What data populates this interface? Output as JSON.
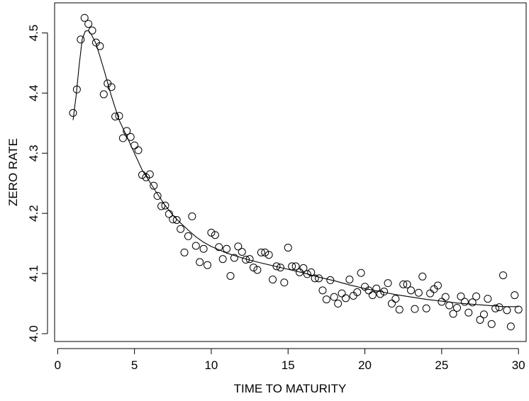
{
  "chart_data": {
    "type": "scatter",
    "title": "",
    "xlabel": "TIME TO MATURITY",
    "ylabel": "ZERO RATE",
    "xlim": [
      -0.2,
      30.5
    ],
    "ylim": [
      3.987,
      4.55
    ],
    "xticks": [
      0,
      5,
      10,
      15,
      20,
      25,
      30
    ],
    "xtick_labels": [
      "0",
      "5",
      "10",
      "15",
      "20",
      "25",
      "30"
    ],
    "yticks": [
      4.0,
      4.1,
      4.2,
      4.3,
      4.4,
      4.5
    ],
    "ytick_labels": [
      "4.0",
      "4.1",
      "4.2",
      "4.3",
      "4.4",
      "4.5"
    ],
    "grid": false,
    "legend": "none",
    "points": [
      [
        1.0,
        4.367
      ],
      [
        1.25,
        4.406
      ],
      [
        1.5,
        4.489
      ],
      [
        1.75,
        4.525
      ],
      [
        2.0,
        4.515
      ],
      [
        2.25,
        4.504
      ],
      [
        2.5,
        4.484
      ],
      [
        2.75,
        4.478
      ],
      [
        3.0,
        4.398
      ],
      [
        3.25,
        4.416
      ],
      [
        3.5,
        4.41
      ],
      [
        3.75,
        4.361
      ],
      [
        4.0,
        4.362
      ],
      [
        4.25,
        4.325
      ],
      [
        4.5,
        4.337
      ],
      [
        4.75,
        4.327
      ],
      [
        5.0,
        4.313
      ],
      [
        5.25,
        4.305
      ],
      [
        5.5,
        4.264
      ],
      [
        5.75,
        4.26
      ],
      [
        6.0,
        4.265
      ],
      [
        6.25,
        4.246
      ],
      [
        6.5,
        4.229
      ],
      [
        6.75,
        4.212
      ],
      [
        7.0,
        4.213
      ],
      [
        7.25,
        4.199
      ],
      [
        7.5,
        4.19
      ],
      [
        7.75,
        4.189
      ],
      [
        8.0,
        4.174
      ],
      [
        8.25,
        4.135
      ],
      [
        8.5,
        4.162
      ],
      [
        8.75,
        4.195
      ],
      [
        9.0,
        4.146
      ],
      [
        9.25,
        4.119
      ],
      [
        9.5,
        4.141
      ],
      [
        9.75,
        4.114
      ],
      [
        10.0,
        4.168
      ],
      [
        10.25,
        4.164
      ],
      [
        10.5,
        4.144
      ],
      [
        10.75,
        4.124
      ],
      [
        11.0,
        4.141
      ],
      [
        11.25,
        4.096
      ],
      [
        11.5,
        4.126
      ],
      [
        11.75,
        4.145
      ],
      [
        12.0,
        4.136
      ],
      [
        12.25,
        4.123
      ],
      [
        12.5,
        4.124
      ],
      [
        12.75,
        4.11
      ],
      [
        13.0,
        4.106
      ],
      [
        13.25,
        4.135
      ],
      [
        13.5,
        4.135
      ],
      [
        13.75,
        4.131
      ],
      [
        14.0,
        4.09
      ],
      [
        14.25,
        4.112
      ],
      [
        14.5,
        4.11
      ],
      [
        14.75,
        4.085
      ],
      [
        15.0,
        4.143
      ],
      [
        15.25,
        4.112
      ],
      [
        15.5,
        4.112
      ],
      [
        15.75,
        4.102
      ],
      [
        16.0,
        4.109
      ],
      [
        16.25,
        4.099
      ],
      [
        16.5,
        4.102
      ],
      [
        16.75,
        4.092
      ],
      [
        17.0,
        4.092
      ],
      [
        17.25,
        4.072
      ],
      [
        17.5,
        4.057
      ],
      [
        17.75,
        4.089
      ],
      [
        18.0,
        4.061
      ],
      [
        18.25,
        4.05
      ],
      [
        18.5,
        4.067
      ],
      [
        18.75,
        4.059
      ],
      [
        19.0,
        4.09
      ],
      [
        19.25,
        4.063
      ],
      [
        19.5,
        4.069
      ],
      [
        19.75,
        4.101
      ],
      [
        20.0,
        4.078
      ],
      [
        20.25,
        4.072
      ],
      [
        20.5,
        4.064
      ],
      [
        20.75,
        4.075
      ],
      [
        21.0,
        4.066
      ],
      [
        21.25,
        4.07
      ],
      [
        21.5,
        4.084
      ],
      [
        21.75,
        4.05
      ],
      [
        22.0,
        4.058
      ],
      [
        22.25,
        4.04
      ],
      [
        22.5,
        4.082
      ],
      [
        22.75,
        4.082
      ],
      [
        23.0,
        4.072
      ],
      [
        23.25,
        4.041
      ],
      [
        23.5,
        4.068
      ],
      [
        23.75,
        4.095
      ],
      [
        24.0,
        4.042
      ],
      [
        24.25,
        4.067
      ],
      [
        24.5,
        4.074
      ],
      [
        24.75,
        4.08
      ],
      [
        25.0,
        4.053
      ],
      [
        25.25,
        4.061
      ],
      [
        25.5,
        4.047
      ],
      [
        25.75,
        4.033
      ],
      [
        26.0,
        4.043
      ],
      [
        26.25,
        4.062
      ],
      [
        26.5,
        4.053
      ],
      [
        26.75,
        4.035
      ],
      [
        27.0,
        4.052
      ],
      [
        27.25,
        4.062
      ],
      [
        27.5,
        4.023
      ],
      [
        27.75,
        4.032
      ],
      [
        28.0,
        4.058
      ],
      [
        28.25,
        4.016
      ],
      [
        28.5,
        4.042
      ],
      [
        28.75,
        4.044
      ],
      [
        29.0,
        4.097
      ],
      [
        29.25,
        4.039
      ],
      [
        29.5,
        4.012
      ],
      [
        29.75,
        4.064
      ],
      [
        30.0,
        4.04
      ]
    ],
    "fit_curve": [
      [
        1.0,
        4.355
      ],
      [
        1.2,
        4.395
      ],
      [
        1.4,
        4.447
      ],
      [
        1.6,
        4.49
      ],
      [
        1.8,
        4.503
      ],
      [
        2.0,
        4.504
      ],
      [
        2.2,
        4.497
      ],
      [
        2.5,
        4.482
      ],
      [
        3.0,
        4.44
      ],
      [
        3.5,
        4.395
      ],
      [
        4.0,
        4.355
      ],
      [
        4.5,
        4.328
      ],
      [
        5.0,
        4.3
      ],
      [
        5.5,
        4.272
      ],
      [
        6.0,
        4.252
      ],
      [
        6.5,
        4.232
      ],
      [
        7.0,
        4.213
      ],
      [
        7.5,
        4.197
      ],
      [
        8.0,
        4.184
      ],
      [
        8.5,
        4.172
      ],
      [
        9.0,
        4.161
      ],
      [
        9.5,
        4.152
      ],
      [
        10.0,
        4.145
      ],
      [
        11.0,
        4.134
      ],
      [
        12.0,
        4.126
      ],
      [
        13.0,
        4.119
      ],
      [
        14.0,
        4.113
      ],
      [
        15.0,
        4.107
      ],
      [
        16.0,
        4.101
      ],
      [
        17.0,
        4.094
      ],
      [
        18.0,
        4.088
      ],
      [
        19.0,
        4.081
      ],
      [
        20.0,
        4.075
      ],
      [
        21.0,
        4.07
      ],
      [
        22.0,
        4.065
      ],
      [
        23.0,
        4.061
      ],
      [
        24.0,
        4.057
      ],
      [
        25.0,
        4.054
      ],
      [
        26.0,
        4.051
      ],
      [
        27.0,
        4.049
      ],
      [
        28.0,
        4.047
      ],
      [
        29.0,
        4.045
      ],
      [
        30.0,
        4.045
      ]
    ]
  }
}
